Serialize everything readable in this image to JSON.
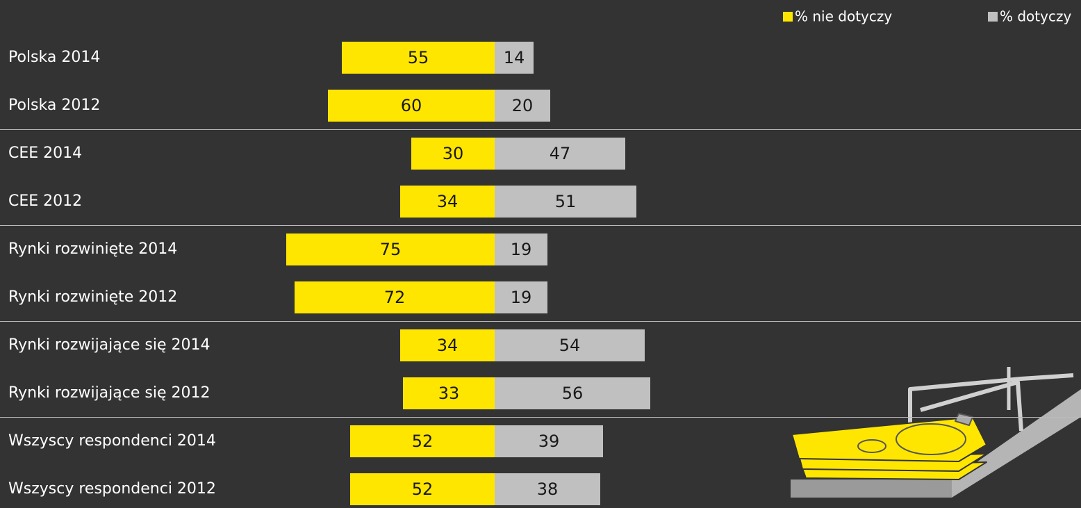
{
  "chart_data": {
    "type": "diverging_bar",
    "categories": [
      "Polska 2014",
      "Polska 2012",
      "CEE 2014",
      "CEE 2012",
      "Rynki rozwinięte 2014",
      "Rynki rozwinięte 2012",
      "Rynki rozwijające się 2014",
      "Rynki rozwijające się 2012",
      "Wszyscy respondenci 2014",
      "Wszyscy respondenci 2012"
    ],
    "series": [
      {
        "name": "% nie dotyczy",
        "color": "#ffe600",
        "values": [
          55,
          60,
          30,
          34,
          75,
          72,
          34,
          33,
          52,
          52
        ]
      },
      {
        "name": "% dotyczy",
        "color": "#c0c0c0",
        "values": [
          14,
          20,
          47,
          51,
          19,
          19,
          54,
          56,
          39,
          38
        ]
      }
    ],
    "legend": "top-right"
  }
}
